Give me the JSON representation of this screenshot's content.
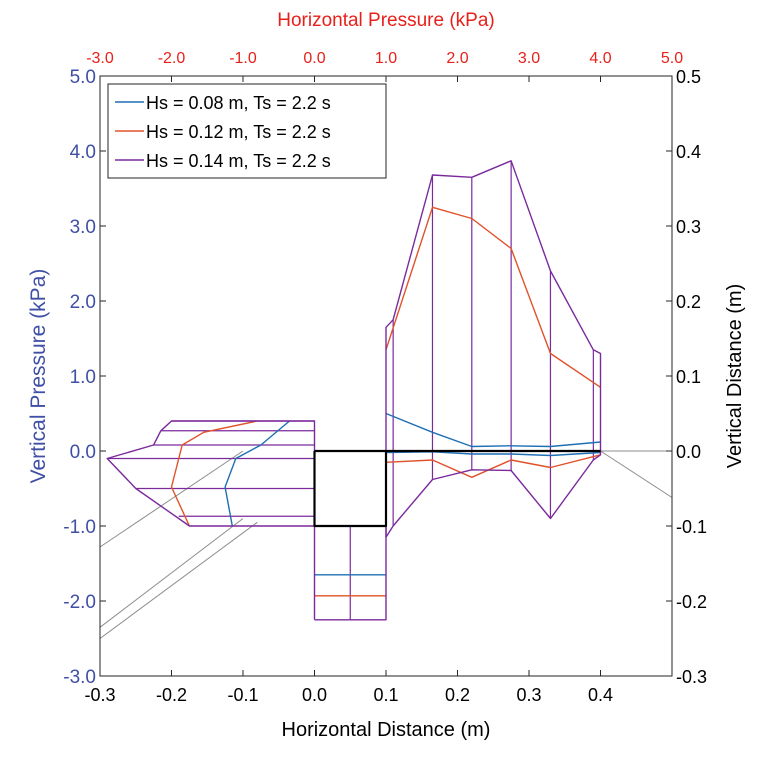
{
  "chart_data": {
    "type": "line",
    "axes": {
      "bottom": {
        "label": "Horizontal Distance (m)",
        "range": [
          -0.3,
          0.5
        ],
        "ticks": [
          "-0.3",
          "-0.2",
          "-0.1",
          "0.0",
          "0.1",
          "0.2",
          "0.3",
          "0.4"
        ]
      },
      "top": {
        "label": "Horizontal Pressure (kPa)",
        "range": [
          -3.0,
          5.0
        ],
        "ticks": [
          "-3.0",
          "-2.0",
          "-1.0",
          "0.0",
          "1.0",
          "2.0",
          "3.0",
          "4.0",
          "5.0"
        ]
      },
      "left": {
        "label": "Vertical Pressure (kPa)",
        "range": [
          -3.0,
          5.0
        ],
        "ticks": [
          "-3.0",
          "-2.0",
          "-1.0",
          "0.0",
          "1.0",
          "2.0",
          "3.0",
          "4.0",
          "5.0"
        ]
      },
      "right": {
        "label": "Vertical Distance (m)",
        "range": [
          -0.3,
          0.5
        ],
        "ticks": [
          "-0.3",
          "-0.2",
          "-0.1",
          "0.0",
          "0.1",
          "0.2",
          "0.3",
          "0.4",
          "0.5"
        ]
      }
    },
    "legend": {
      "position": "top-left"
    },
    "grid": false,
    "series": [
      {
        "name": "Hs = 0.08 m, Ts = 2.2 s",
        "color": "#1f6fb5",
        "lines": [
          [
            [
              0.1,
              0.5
            ],
            [
              0.165,
              0.25
            ],
            [
              0.22,
              0.06
            ],
            [
              0.275,
              0.07
            ],
            [
              0.33,
              0.06
            ],
            [
              0.4,
              0.12
            ]
          ],
          [
            [
              0.1,
              -0.02
            ],
            [
              0.165,
              -0.01
            ],
            [
              0.22,
              -0.04
            ],
            [
              0.275,
              -0.04
            ],
            [
              0.33,
              -0.06
            ],
            [
              0.4,
              -0.02
            ]
          ],
          [
            [
              -0.035,
              0.4
            ],
            [
              -0.075,
              0.08
            ],
            [
              -0.11,
              -0.1
            ],
            [
              -0.125,
              -0.48
            ],
            [
              -0.115,
              -1.0
            ]
          ],
          [
            [
              0.0,
              -1.65
            ],
            [
              0.1,
              -1.65
            ]
          ]
        ]
      },
      {
        "name": "Hs = 0.12 m, Ts = 2.2 s",
        "color": "#e0522a",
        "lines": [
          [
            [
              0.1,
              1.35
            ],
            [
              0.165,
              3.25
            ],
            [
              0.22,
              3.1
            ],
            [
              0.275,
              2.7
            ],
            [
              0.33,
              1.3
            ],
            [
              0.4,
              0.85
            ]
          ],
          [
            [
              0.1,
              -0.15
            ],
            [
              0.165,
              -0.12
            ],
            [
              0.22,
              -0.35
            ],
            [
              0.275,
              -0.12
            ],
            [
              0.33,
              -0.22
            ],
            [
              0.4,
              -0.05
            ]
          ],
          [
            [
              -0.08,
              0.4
            ],
            [
              -0.155,
              0.25
            ],
            [
              -0.185,
              0.08
            ],
            [
              -0.2,
              -0.48
            ],
            [
              -0.175,
              -1.0
            ]
          ],
          [
            [
              0.0,
              -1.93
            ],
            [
              0.1,
              -1.93
            ]
          ]
        ]
      },
      {
        "name": "Hs = 0.14 m, Ts = 2.2 s",
        "color": "#7b2a9c",
        "lines": [
          [
            [
              0.1,
              -1.15
            ],
            [
              0.1,
              1.65
            ],
            [
              0.11,
              1.75
            ],
            [
              0.165,
              3.68
            ],
            [
              0.22,
              3.65
            ],
            [
              0.275,
              3.87
            ],
            [
              0.33,
              2.4
            ],
            [
              0.39,
              1.35
            ],
            [
              0.4,
              1.3
            ],
            [
              0.4,
              -0.05
            ],
            [
              0.39,
              -0.12
            ],
            [
              0.33,
              -0.9
            ],
            [
              0.275,
              -0.26
            ],
            [
              0.22,
              -0.25
            ],
            [
              0.165,
              -0.38
            ],
            [
              0.11,
              -1.0
            ],
            [
              0.1,
              -1.15
            ]
          ],
          [
            [
              0.0,
              -2.25
            ],
            [
              0.0,
              0.4
            ],
            [
              -0.2,
              0.4
            ],
            [
              -0.215,
              0.27
            ],
            [
              -0.225,
              0.08
            ],
            [
              -0.29,
              -0.1
            ],
            [
              -0.25,
              -0.5
            ],
            [
              -0.175,
              -1.0
            ],
            [
              0.0,
              -1.0
            ]
          ],
          [
            [
              0.0,
              -2.25
            ],
            [
              0.1,
              -2.25
            ],
            [
              0.1,
              -1.0
            ]
          ]
        ]
      }
    ],
    "bars": {
      "color": "#7b2a9c",
      "right_verticals": [
        [
          0.11,
          1.75,
          -1.0
        ],
        [
          0.165,
          3.68,
          -0.38
        ],
        [
          0.22,
          3.65,
          -0.25
        ],
        [
          0.275,
          3.87,
          -0.26
        ],
        [
          0.33,
          2.4,
          -0.9
        ],
        [
          0.39,
          1.35,
          -0.12
        ]
      ],
      "left_horizontals": [
        [
          0.4,
          -0.2,
          0.0
        ],
        [
          0.27,
          -0.215,
          0.0
        ],
        [
          0.08,
          -0.225,
          0.0
        ],
        [
          -0.1,
          -0.29,
          0.0
        ],
        [
          -0.5,
          -0.25,
          0.0
        ],
        [
          -0.87,
          -0.19,
          0.0
        ]
      ],
      "bottom_verticals": [
        [
          0.05,
          -1.0,
          -2.25
        ]
      ]
    },
    "structure": {
      "color": "#000000",
      "lines": [
        [
          [
            0.0,
            0.0
          ],
          [
            0.4,
            0.0
          ]
        ],
        [
          [
            0.0,
            0.0
          ],
          [
            0.0,
            -1.0
          ],
          [
            0.1,
            -1.0
          ],
          [
            0.1,
            0.0
          ]
        ]
      ]
    },
    "reference_lines": {
      "color": "#8c8c8c",
      "lines": [
        [
          [
            -0.3,
            -1.28
          ],
          [
            -0.1,
            0.0
          ]
        ],
        [
          [
            -0.3,
            -2.35
          ],
          [
            -0.1,
            -0.9
          ]
        ],
        [
          [
            -0.3,
            -2.5
          ],
          [
            -0.08,
            -0.95
          ]
        ],
        [
          [
            0.0,
            0.0
          ],
          [
            0.5,
            0.0
          ]
        ],
        [
          [
            0.4,
            0.0
          ],
          [
            0.5,
            -0.62
          ]
        ]
      ]
    }
  }
}
